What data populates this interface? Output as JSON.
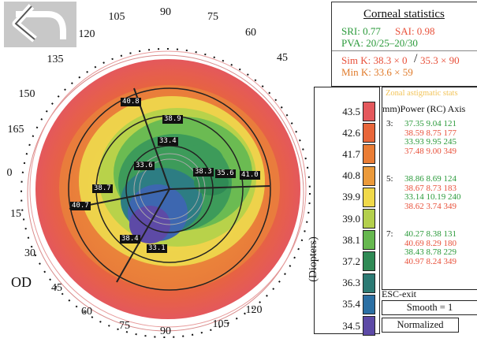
{
  "eye": "OD",
  "axis_degrees": [
    "90",
    "75",
    "60",
    "45",
    "105",
    "120",
    "135",
    "150",
    "165",
    "0",
    "15",
    "30",
    "45",
    "60",
    "75",
    "90",
    "105",
    "120"
  ],
  "stats": {
    "title": "Corneal statistics",
    "sri": "SRI: 0.77",
    "sai": "SAI: 0.98",
    "pva": "PVA: 20/25–20/30",
    "simk_a": "Sim K: 38.3 × 0",
    "simk_b": "35.3 × 90",
    "mink": "Min K: 33.6 × 59"
  },
  "scale": {
    "axis_label": "(Diopters)",
    "values": [
      "43.5",
      "42.6",
      "41.7",
      "40.8",
      "39.9",
      "39.0",
      "38.1",
      "37.2",
      "36.3",
      "35.4",
      "34.5"
    ],
    "colors": [
      "#e4585c",
      "#e8663a",
      "#ea7d35",
      "#eb9a3b",
      "#f0d94a",
      "#b3cf4c",
      "#66b84f",
      "#2f8a55",
      "#2c7a74",
      "#2b6fa3",
      "#5d4aa6"
    ]
  },
  "zonal": {
    "title": "Zonal astigmatic stats",
    "header": "(mm)Power (RC) Axis",
    "zones": [
      {
        "label": "3:",
        "rows": [
          {
            "text": "37.35  9.04  121",
            "color": "green"
          },
          {
            "text": "38.59  8.75  177",
            "color": "red"
          },
          {
            "text": "33.93  9.95  245",
            "color": "green"
          },
          {
            "text": "37.48  9.00  349",
            "color": "red"
          }
        ]
      },
      {
        "label": "5:",
        "rows": [
          {
            "text": "38.86  8.69  124",
            "color": "green"
          },
          {
            "text": "38.67  8.73  183",
            "color": "red"
          },
          {
            "text": "33.14  10.19  240",
            "color": "green"
          },
          {
            "text": "38.62  3.74  349",
            "color": "red"
          }
        ]
      },
      {
        "label": "7:",
        "rows": [
          {
            "text": "40.27  8.38  131",
            "color": "green"
          },
          {
            "text": "40.69  8.29  180",
            "color": "red"
          },
          {
            "text": "38.43  8.78  229",
            "color": "green"
          },
          {
            "text": "40.97  8.24  349",
            "color": "red"
          }
        ]
      }
    ]
  },
  "controls": {
    "esc": "ESC-exit",
    "smooth": "Smooth = 1",
    "normalized": "Normalized"
  },
  "map_labels": [
    "40.8",
    "38.9",
    "33.4",
    "33.6",
    "38.7",
    "38.3",
    "35.6",
    "41.0",
    "40.7",
    "38.4",
    "33.1"
  ],
  "icons": {
    "back": "back-arrow-icon"
  }
}
